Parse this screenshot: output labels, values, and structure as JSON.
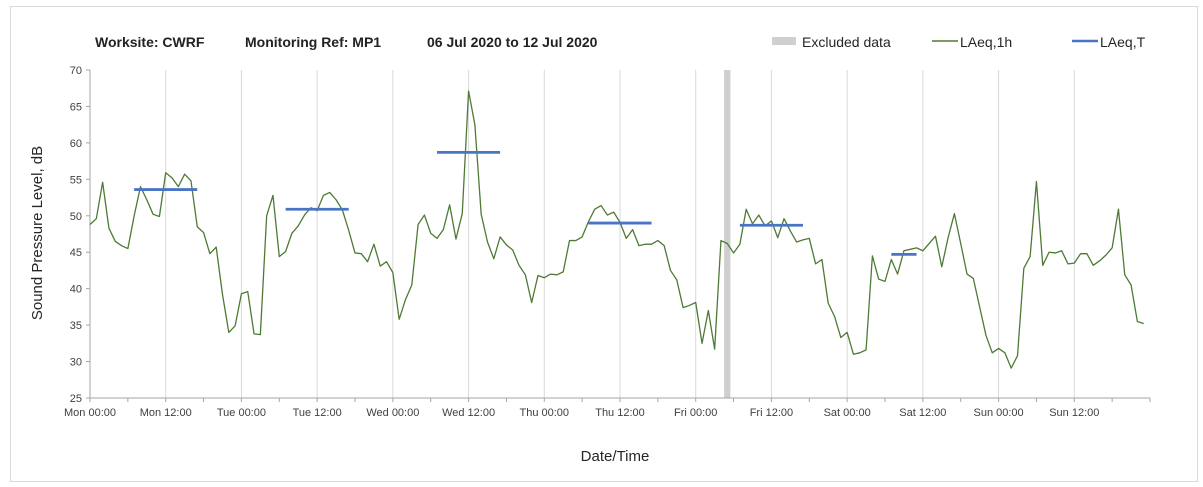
{
  "chart_data": {
    "type": "line",
    "title_parts": [
      "Worksite: CWRF",
      "Monitoring Ref: MP1",
      "06 Jul 2020 to 12 Jul 2020"
    ],
    "xlabel": "Date/Time",
    "ylabel": "Sound Pressure Level, dB",
    "ylim": [
      25,
      70
    ],
    "y_ticks": [
      25,
      30,
      35,
      40,
      45,
      50,
      55,
      60,
      65,
      70
    ],
    "xlim_hours": [
      0,
      168
    ],
    "x_ticks": [
      {
        "hour": 0,
        "label": "Mon 00:00"
      },
      {
        "hour": 12,
        "label": "Mon 12:00"
      },
      {
        "hour": 24,
        "label": "Tue 00:00"
      },
      {
        "hour": 36,
        "label": "Tue 12:00"
      },
      {
        "hour": 48,
        "label": "Wed 00:00"
      },
      {
        "hour": 60,
        "label": "Wed 12:00"
      },
      {
        "hour": 72,
        "label": "Thu 00:00"
      },
      {
        "hour": 84,
        "label": "Thu 12:00"
      },
      {
        "hour": 96,
        "label": "Fri 00:00"
      },
      {
        "hour": 108,
        "label": "Fri 12:00"
      },
      {
        "hour": 120,
        "label": "Sat 00:00"
      },
      {
        "hour": 132,
        "label": "Sat 12:00"
      },
      {
        "hour": 144,
        "label": "Sun 00:00"
      },
      {
        "hour": 156,
        "label": "Sun 12:00"
      }
    ],
    "grid": "vertical",
    "legend_position": "top-right",
    "legend": [
      {
        "label": "Excluded data",
        "color": "#cfcfcf",
        "kind": "band"
      },
      {
        "label": "LAeq,1h",
        "color": "#4e7a35",
        "kind": "line"
      },
      {
        "label": "LAeq,T",
        "color": "#4a74c4",
        "kind": "line"
      }
    ],
    "excluded_range_hours": [
      100.5,
      101.5
    ],
    "series": [
      {
        "name": "LAeq,1h",
        "color": "#4e7a35",
        "values": [
          48.8,
          49.6,
          54.6,
          48.3,
          46.5,
          45.9,
          45.5,
          50,
          54,
          52.2,
          50.2,
          49.9,
          55.9,
          55.2,
          54,
          55.7,
          54.8,
          48.5,
          47.7,
          44.8,
          45.7,
          39.2,
          34,
          34.9,
          39.3,
          39.6,
          33.8,
          33.7,
          50,
          52.8,
          44.4,
          45.1,
          47.6,
          48.6,
          50.1,
          51.1,
          50.7,
          52.8,
          53.2,
          52.2,
          50.8,
          48,
          44.9,
          44.8,
          43.7,
          46.1,
          43.1,
          43.7,
          42.2,
          35.8,
          38.5,
          40.5,
          48.8,
          50.1,
          47.6,
          46.9,
          48.1,
          51.5,
          46.8,
          50.3,
          67.1,
          62.5,
          50.2,
          46.4,
          44.1,
          47.1,
          46,
          45.3,
          43.2,
          41.9,
          38.1,
          41.8,
          41.5,
          42,
          41.9,
          42.3,
          46.6,
          46.6,
          47.1,
          49.2,
          50.9,
          51.4,
          50.1,
          50.5,
          49.1,
          46.9,
          48.1,
          45.9,
          46.1,
          46.1,
          46.6,
          45.9,
          42.5,
          41.2,
          37.4,
          37.7,
          38.1,
          32.5,
          37,
          31.7,
          46.6,
          46.2,
          44.9,
          46.1,
          50.9,
          48.9,
          50.1,
          48.6,
          49.3,
          47,
          49.6,
          47.9,
          46.4,
          46.7,
          46.9,
          43.4,
          44,
          38,
          36.2,
          33.3,
          34,
          31,
          31.2,
          31.6,
          44.5,
          41.3,
          41,
          44,
          42,
          45.2,
          45.4,
          45.6,
          45.2,
          46.2,
          47.2,
          43,
          47,
          50.3,
          46.2,
          42,
          41.4,
          37.5,
          33.6,
          31.2,
          31.8,
          31.2,
          29.1,
          30.8,
          42.8,
          44.4,
          54.7,
          43.2,
          45,
          44.9,
          45.2,
          43.4,
          43.5,
          44.8,
          44.8,
          43.2,
          43.8,
          44.6,
          45.6,
          50.9,
          41.9,
          40.5,
          35.5,
          35.2
        ]
      },
      {
        "name": "LAeq,T",
        "color": "#4a74c4",
        "segments": [
          {
            "from": 7,
            "to": 17,
            "value": 53.6
          },
          {
            "from": 31,
            "to": 41,
            "value": 50.9
          },
          {
            "from": 55,
            "to": 65,
            "value": 58.7
          },
          {
            "from": 79,
            "to": 89,
            "value": 49.0
          },
          {
            "from": 103,
            "to": 113,
            "value": 48.7
          },
          {
            "from": 127,
            "to": 131,
            "value": 44.7
          }
        ]
      }
    ]
  }
}
